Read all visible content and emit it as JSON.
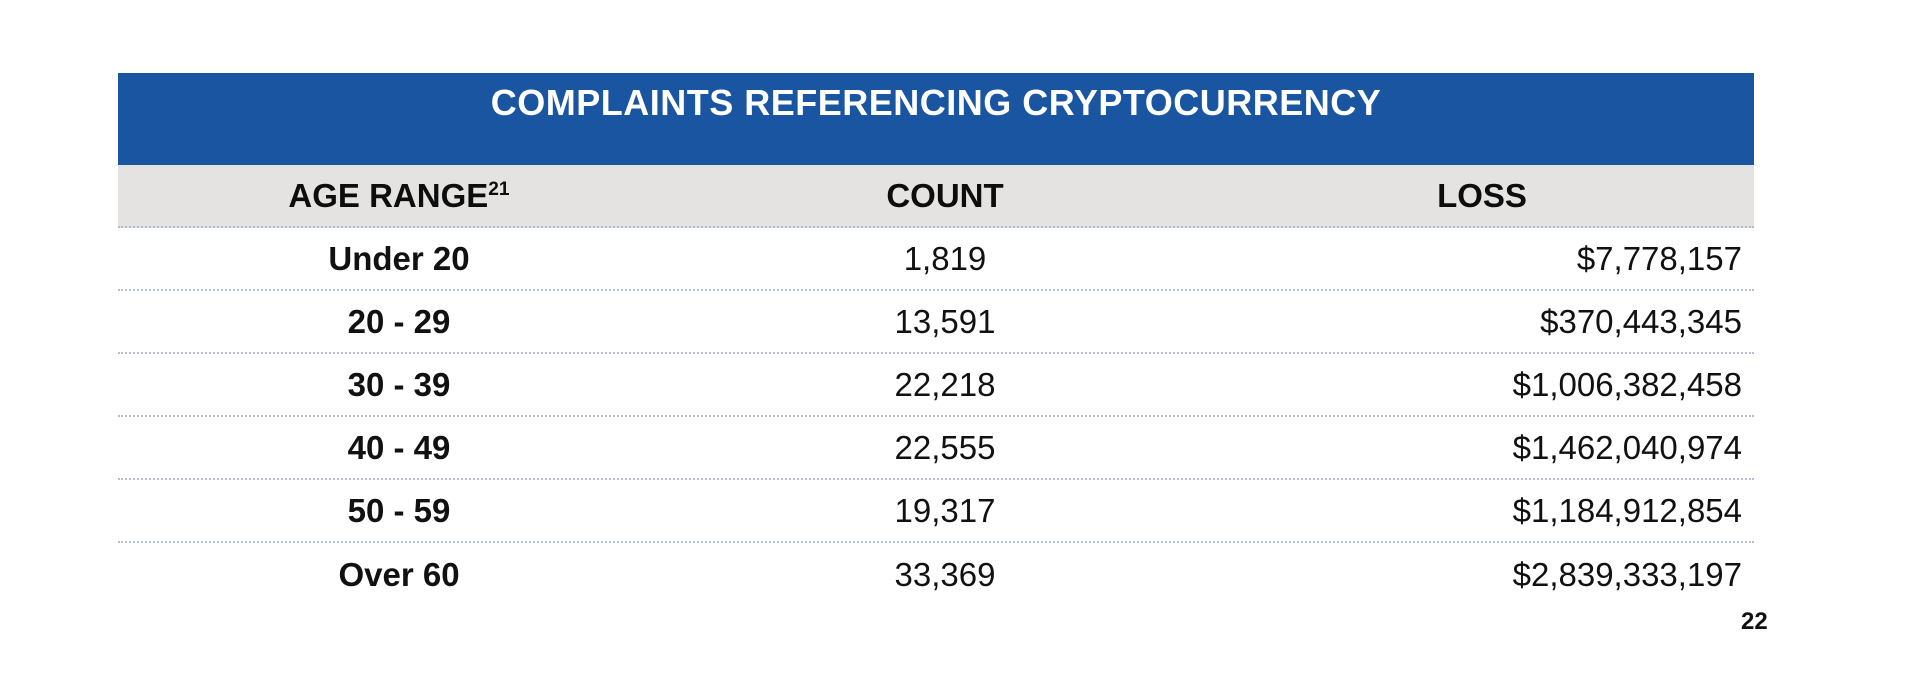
{
  "page": {
    "background_color": "#ffffff",
    "page_number": "22"
  },
  "table": {
    "title": "COMPLAINTS REFERENCING CRYPTOCURRENCY",
    "title_bg_color": "#1a55a2",
    "title_text_color": "#ffffff",
    "header_bg_color": "#e4e3e1",
    "divider_color": "#b3bdd3",
    "columns": [
      {
        "key": "age",
        "label": "AGE RANGE",
        "superscript": "21"
      },
      {
        "key": "count",
        "label": "COUNT"
      },
      {
        "key": "loss",
        "label": "LOSS"
      }
    ],
    "rows": [
      {
        "age": "Under 20",
        "count": "1,819",
        "loss": "$7,778,157"
      },
      {
        "age": "20 - 29",
        "count": "13,591",
        "loss": "$370,443,345"
      },
      {
        "age": "30 - 39",
        "count": "22,218",
        "loss": "$1,006,382,458"
      },
      {
        "age": "40 - 49",
        "count": "22,555",
        "loss": "$1,462,040,974"
      },
      {
        "age": "50 - 59",
        "count": "19,317",
        "loss": "$1,184,912,854"
      },
      {
        "age": "Over 60",
        "count": "33,369",
        "loss": "$2,839,333,197"
      }
    ]
  },
  "chart_data": {
    "type": "table",
    "title": "COMPLAINTS REFERENCING CRYPTOCURRENCY",
    "columns": [
      "AGE RANGE",
      "COUNT",
      "LOSS"
    ],
    "footnote_marker": "21",
    "categories": [
      "Under 20",
      "20 - 29",
      "30 - 39",
      "40 - 49",
      "50 - 59",
      "Over 60"
    ],
    "series": [
      {
        "name": "COUNT",
        "values": [
          1819,
          13591,
          22218,
          22555,
          19317,
          33369
        ]
      },
      {
        "name": "LOSS (USD)",
        "values": [
          7778157,
          370443345,
          1006382458,
          1462040974,
          1184912854,
          2839333197
        ]
      }
    ],
    "page_number": 22
  }
}
